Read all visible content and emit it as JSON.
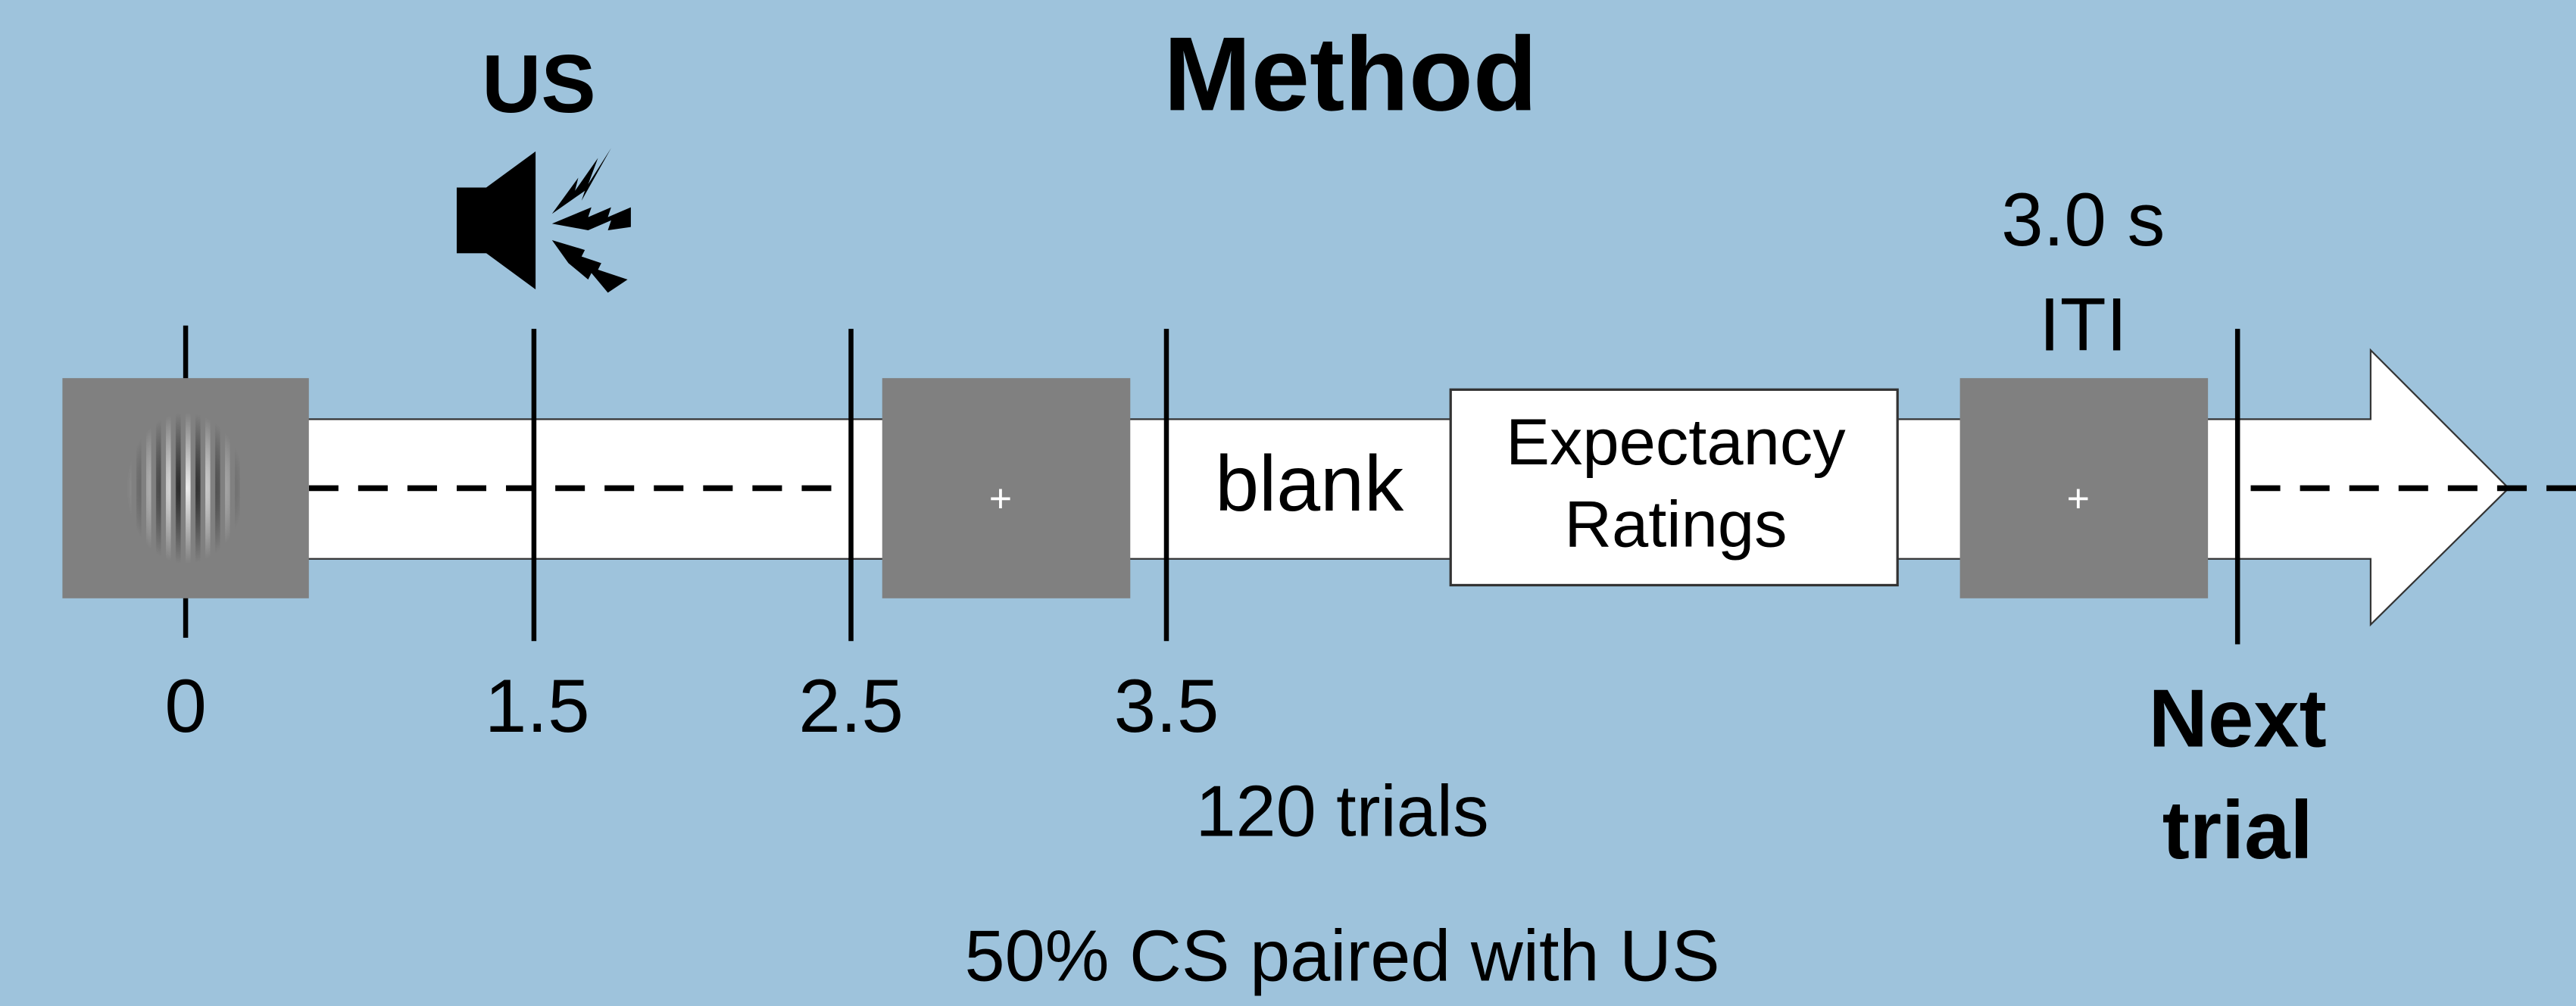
{
  "title": "Method",
  "us_label": "US",
  "timeline": {
    "ticks": [
      "0",
      "1.5",
      "2.5",
      "3.5"
    ],
    "fixation": "+",
    "blank": "blank",
    "rating_box": [
      "Expectancy",
      "Ratings"
    ],
    "iti": {
      "duration": "3.0 s",
      "label": "ITI"
    },
    "next_trial": [
      "Next",
      "trial"
    ]
  },
  "trials": "120 trials",
  "pairing": "50% CS paired with US"
}
